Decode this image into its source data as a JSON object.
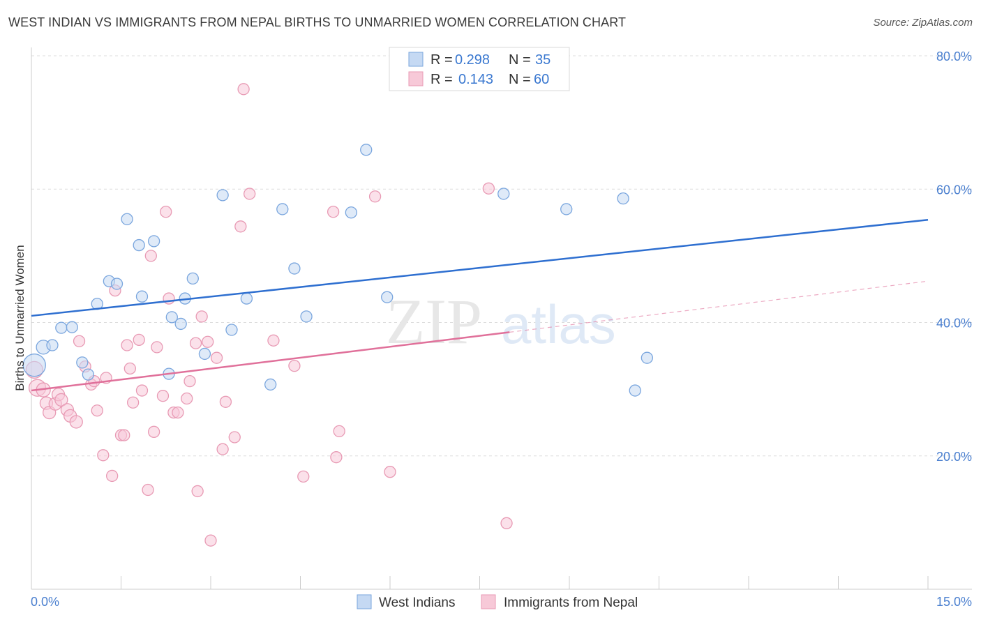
{
  "title": "WEST INDIAN VS IMMIGRANTS FROM NEPAL BIRTHS TO UNMARRIED WOMEN CORRELATION CHART",
  "source": "Source: ZipAtlas.com",
  "watermark": {
    "zip": "ZIP",
    "atlas": "atlas"
  },
  "legend_top": [
    {
      "r_label": "R = ",
      "r_value": "0.298",
      "n_label": "N = ",
      "n_value": "35"
    },
    {
      "r_label": "R = ",
      "r_value": "0.143",
      "n_label": "N = ",
      "n_value": "60"
    }
  ],
  "colors": {
    "blue_fill": "#c5d9f3",
    "blue_stroke": "#7aa6de",
    "blue_line": "#2e6fd0",
    "pink_fill": "#f7c9d8",
    "pink_stroke": "#e89ab4",
    "pink_line": "#e0709a",
    "grid": "#dddddd",
    "axis_text": "#4a7fcf"
  },
  "chart_data": {
    "type": "scatter",
    "title": "WEST INDIAN VS IMMIGRANTS FROM NEPAL BIRTHS TO UNMARRIED WOMEN CORRELATION CHART",
    "xlabel": "",
    "ylabel": "Births to Unmarried Women",
    "xlim": [
      0,
      15
    ],
    "ylim": [
      0,
      80
    ],
    "x_tick_labels": [
      "0.0%",
      "15.0%"
    ],
    "y_ticks": [
      20,
      40,
      60,
      80
    ],
    "y_tick_labels": [
      "20.0%",
      "40.0%",
      "60.0%",
      "80.0%"
    ],
    "grid": true,
    "legend_placement": "top-center",
    "series": [
      {
        "name": "West Indians",
        "color": "#7aa6de",
        "trend": {
          "x": [
            0,
            15
          ],
          "y": [
            41.0,
            55.4
          ],
          "style": "solid"
        },
        "points": [
          [
            0.05,
            33.6,
            16
          ],
          [
            0.2,
            36.3,
            10
          ],
          [
            0.35,
            36.6,
            8
          ],
          [
            0.5,
            39.2,
            8
          ],
          [
            0.68,
            39.3,
            8
          ],
          [
            0.85,
            34.0,
            8
          ],
          [
            0.95,
            32.2,
            8
          ],
          [
            1.1,
            42.8,
            8
          ],
          [
            1.3,
            46.2,
            8
          ],
          [
            1.43,
            45.8,
            8
          ],
          [
            1.6,
            55.5,
            8
          ],
          [
            1.8,
            51.6,
            8
          ],
          [
            1.85,
            43.9,
            8
          ],
          [
            2.05,
            52.2,
            8
          ],
          [
            2.3,
            32.3,
            8
          ],
          [
            2.35,
            40.8,
            8
          ],
          [
            2.5,
            39.8,
            8
          ],
          [
            2.57,
            43.6,
            8
          ],
          [
            2.7,
            46.6,
            8
          ],
          [
            2.9,
            35.3,
            8
          ],
          [
            3.2,
            59.1,
            8
          ],
          [
            3.35,
            38.9,
            8
          ],
          [
            3.6,
            43.6,
            8
          ],
          [
            4.0,
            30.7,
            8
          ],
          [
            4.2,
            57.0,
            8
          ],
          [
            4.4,
            48.1,
            8
          ],
          [
            4.6,
            40.9,
            8
          ],
          [
            5.35,
            56.5,
            8
          ],
          [
            5.6,
            65.9,
            8
          ],
          [
            5.95,
            43.8,
            8
          ],
          [
            7.9,
            59.3,
            8
          ],
          [
            8.95,
            57.0,
            8
          ],
          [
            9.9,
            58.6,
            8
          ],
          [
            10.1,
            29.8,
            8
          ],
          [
            10.3,
            34.7,
            8
          ]
        ]
      },
      {
        "name": "Immigrants from Nepal",
        "color": "#e89ab4",
        "trend": {
          "x": [
            0,
            15
          ],
          "y": [
            29.8,
            46.2
          ],
          "style": "solid-then-dashed",
          "solid_until": 8.0
        },
        "points": [
          [
            0.05,
            32.9,
            12
          ],
          [
            0.1,
            30.2,
            12
          ],
          [
            0.2,
            29.9,
            10
          ],
          [
            0.25,
            27.9,
            9
          ],
          [
            0.3,
            26.5,
            9
          ],
          [
            0.4,
            27.8,
            9
          ],
          [
            0.45,
            29.2,
            9
          ],
          [
            0.5,
            28.4,
            9
          ],
          [
            0.6,
            26.9,
            9
          ],
          [
            0.65,
            26.0,
            9
          ],
          [
            0.75,
            25.1,
            9
          ],
          [
            0.8,
            37.2,
            8
          ],
          [
            0.9,
            33.4,
            8
          ],
          [
            1.0,
            30.7,
            8
          ],
          [
            1.05,
            31.2,
            8
          ],
          [
            1.1,
            26.8,
            8
          ],
          [
            1.2,
            20.1,
            8
          ],
          [
            1.25,
            31.7,
            8
          ],
          [
            1.35,
            17.0,
            8
          ],
          [
            1.4,
            44.8,
            8
          ],
          [
            1.5,
            23.1,
            8
          ],
          [
            1.55,
            23.1,
            8
          ],
          [
            1.6,
            36.6,
            8
          ],
          [
            1.65,
            33.1,
            8
          ],
          [
            1.7,
            28.0,
            8
          ],
          [
            1.8,
            37.4,
            8
          ],
          [
            1.85,
            29.8,
            8
          ],
          [
            1.95,
            14.9,
            8
          ],
          [
            2.0,
            50.0,
            8
          ],
          [
            2.05,
            23.6,
            8
          ],
          [
            2.1,
            36.3,
            8
          ],
          [
            2.2,
            29.0,
            8
          ],
          [
            2.25,
            56.6,
            8
          ],
          [
            2.3,
            43.6,
            8
          ],
          [
            2.38,
            26.5,
            8
          ],
          [
            2.45,
            26.5,
            8
          ],
          [
            2.6,
            28.6,
            8
          ],
          [
            2.65,
            31.2,
            8
          ],
          [
            2.75,
            36.9,
            8
          ],
          [
            2.78,
            14.7,
            8
          ],
          [
            2.85,
            40.9,
            8
          ],
          [
            2.95,
            37.1,
            8
          ],
          [
            3.0,
            7.3,
            8
          ],
          [
            3.1,
            34.7,
            8
          ],
          [
            3.2,
            21.0,
            8
          ],
          [
            3.25,
            28.1,
            8
          ],
          [
            3.4,
            22.8,
            8
          ],
          [
            3.5,
            54.4,
            8
          ],
          [
            3.55,
            75.0,
            8
          ],
          [
            3.65,
            59.3,
            8
          ],
          [
            4.05,
            37.3,
            8
          ],
          [
            4.4,
            33.5,
            8
          ],
          [
            4.55,
            16.9,
            8
          ],
          [
            5.05,
            56.6,
            8
          ],
          [
            5.1,
            19.8,
            8
          ],
          [
            5.15,
            23.7,
            8
          ],
          [
            5.75,
            58.9,
            8
          ],
          [
            6.0,
            17.6,
            8
          ],
          [
            7.65,
            60.1,
            8
          ],
          [
            7.95,
            9.9,
            8
          ]
        ]
      }
    ]
  },
  "legend_bottom": [
    {
      "label": "West Indians"
    },
    {
      "label": "Immigrants from Nepal"
    }
  ]
}
